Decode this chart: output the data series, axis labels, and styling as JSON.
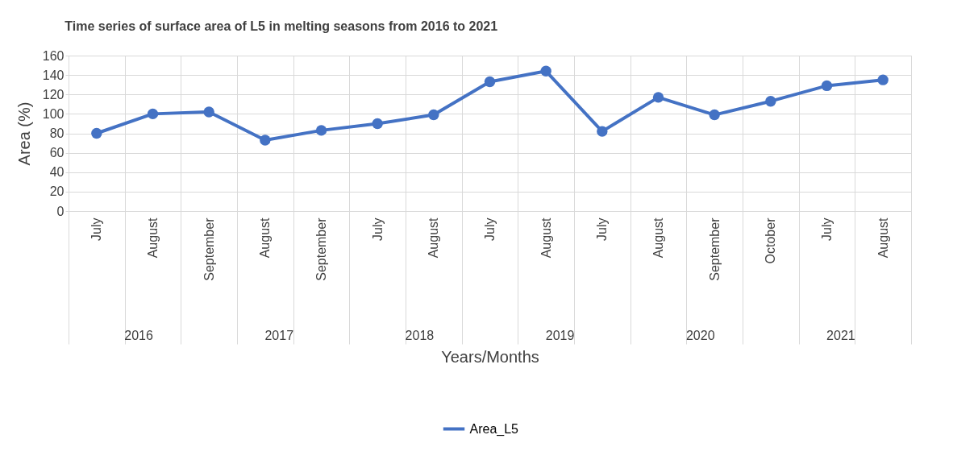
{
  "chart_data": {
    "type": "line",
    "title": "Time series of surface area of L5 in melting seasons from 2016 to 2021",
    "xlabel": "Years/Months",
    "ylabel": "Area (%)",
    "categories": [
      "July",
      "August",
      "September",
      "August",
      "September",
      "July",
      "August",
      "July",
      "August",
      "July",
      "August",
      "September",
      "October",
      "July",
      "August"
    ],
    "series": [
      {
        "name": "Area_L5",
        "color": "#4472c4",
        "values": [
          80,
          100,
          102,
          73,
          83,
          90,
          99,
          133,
          144,
          82,
          117,
          99,
          113,
          129,
          135
        ]
      }
    ],
    "ylim": [
      0,
      160
    ],
    "yticks": [
      0,
      20,
      40,
      60,
      80,
      100,
      120,
      140,
      160
    ],
    "annotations": [
      "2016",
      "2017",
      "2018",
      "2019",
      "2020",
      "2021"
    ],
    "grid": true,
    "legend": "bottom",
    "marker": "circle",
    "line_style": "solid"
  }
}
